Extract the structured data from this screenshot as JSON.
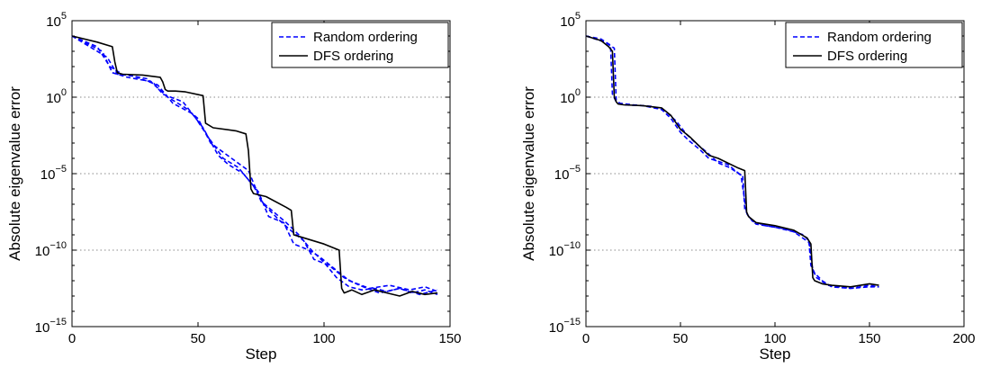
{
  "chart_data": [
    {
      "type": "line",
      "xlabel": "Step",
      "ylabel": "Absolute eigenvalue error",
      "xlim": [
        0,
        150
      ],
      "ylim_exponent": [
        -15,
        5
      ],
      "yscale": "log",
      "x_ticks": [
        0,
        50,
        100,
        150
      ],
      "y_ticks": [
        {
          "base": "10",
          "exp": "−15",
          "e": -15
        },
        {
          "base": "10",
          "exp": "−10",
          "e": -10
        },
        {
          "base": "10",
          "exp": "−5",
          "e": -5
        },
        {
          "base": "10",
          "exp": "0",
          "e": 0
        },
        {
          "base": "10",
          "exp": "5",
          "e": 5
        }
      ],
      "grid": "y-dotted",
      "legend_position": "top-right",
      "legend": [
        {
          "label": "Random ordering",
          "color": "#0000ff",
          "style": "dashed"
        },
        {
          "label": "DFS ordering",
          "color": "#000000",
          "style": "solid"
        }
      ],
      "series": [
        {
          "name": "DFS ordering",
          "color": "#000000",
          "style": "solid",
          "x": [
            0,
            10,
            16,
            17,
            18,
            20,
            28,
            35,
            36,
            37,
            38,
            41,
            45,
            52,
            53,
            56,
            65,
            69,
            70,
            71,
            72,
            77,
            85,
            87,
            88,
            90,
            100,
            103,
            106,
            107,
            108,
            111,
            115,
            120,
            125,
            130,
            135,
            140,
            145
          ],
          "y_exp": [
            4.0,
            3.6,
            3.3,
            2.3,
            1.6,
            1.5,
            1.45,
            1.3,
            1.0,
            0.5,
            0.4,
            0.4,
            0.35,
            0.1,
            -1.7,
            -2.0,
            -2.2,
            -2.4,
            -3.5,
            -6.0,
            -6.3,
            -6.5,
            -7.2,
            -7.4,
            -9.0,
            -9.1,
            -9.6,
            -9.8,
            -10.0,
            -12.5,
            -12.8,
            -12.6,
            -12.9,
            -12.6,
            -12.8,
            -13.0,
            -12.7,
            -12.9,
            -12.8
          ]
        },
        {
          "name": "Random ordering",
          "color": "#0000ff",
          "style": "dashed",
          "x": [
            0,
            10,
            15,
            20,
            30,
            38,
            45,
            50,
            55,
            60,
            65,
            70,
            75,
            80,
            85,
            90,
            95,
            100,
            105,
            110,
            115,
            120,
            125,
            130,
            135,
            140,
            145
          ],
          "y_exp": [
            4.0,
            3.3,
            2.0,
            1.5,
            1.2,
            0.0,
            -0.7,
            -1.4,
            -3.0,
            -3.6,
            -4.2,
            -4.8,
            -6.8,
            -7.5,
            -8.2,
            -9.0,
            -10.0,
            -10.8,
            -11.8,
            -12.4,
            -12.6,
            -12.5,
            -12.7,
            -12.5,
            -12.8,
            -12.6,
            -12.9
          ]
        },
        {
          "name": "Random ordering",
          "color": "#0000ff",
          "style": "dashed",
          "x": [
            0,
            12,
            16,
            22,
            32,
            36,
            44,
            52,
            58,
            62,
            68,
            74,
            78,
            84,
            88,
            94,
            98,
            104,
            110,
            118,
            126,
            134,
            140,
            145
          ],
          "y_exp": [
            4.0,
            3.0,
            1.6,
            1.3,
            1.0,
            0.2,
            -0.3,
            -2.0,
            -3.8,
            -4.4,
            -5.0,
            -6.2,
            -7.8,
            -8.2,
            -9.6,
            -10.0,
            -10.4,
            -11.2,
            -12.0,
            -12.5,
            -12.3,
            -12.6,
            -12.4,
            -12.7
          ]
        },
        {
          "name": "Random ordering",
          "color": "#0000ff",
          "style": "dashed",
          "x": [
            0,
            14,
            18,
            24,
            34,
            40,
            48,
            54,
            60,
            66,
            72,
            76,
            82,
            86,
            92,
            96,
            102,
            108,
            114,
            122,
            130,
            138,
            145
          ],
          "y_exp": [
            4.0,
            2.6,
            1.5,
            1.4,
            0.8,
            -0.4,
            -1.1,
            -2.6,
            -4.0,
            -4.6,
            -5.8,
            -7.0,
            -8.0,
            -8.6,
            -9.4,
            -10.6,
            -11.0,
            -11.8,
            -12.3,
            -12.8,
            -12.5,
            -12.9,
            -12.6
          ]
        }
      ]
    },
    {
      "type": "line",
      "xlabel": "Step",
      "ylabel": "Absolute eigenvalue error",
      "xlim": [
        0,
        200
      ],
      "ylim_exponent": [
        -15,
        5
      ],
      "yscale": "log",
      "x_ticks": [
        0,
        50,
        100,
        150,
        200
      ],
      "y_ticks": [
        {
          "base": "10",
          "exp": "−15",
          "e": -15
        },
        {
          "base": "10",
          "exp": "−10",
          "e": -10
        },
        {
          "base": "10",
          "exp": "−5",
          "e": -5
        },
        {
          "base": "10",
          "exp": "0",
          "e": 0
        },
        {
          "base": "10",
          "exp": "5",
          "e": 5
        }
      ],
      "grid": "y-dotted",
      "legend_position": "top-right",
      "legend": [
        {
          "label": "Random ordering",
          "color": "#0000ff",
          "style": "dashed"
        },
        {
          "label": "DFS ordering",
          "color": "#000000",
          "style": "solid"
        }
      ],
      "series": [
        {
          "name": "DFS ordering",
          "color": "#000000",
          "style": "solid",
          "x": [
            0,
            8,
            12,
            14,
            15,
            16,
            17,
            20,
            30,
            40,
            45,
            50,
            55,
            60,
            65,
            70,
            75,
            80,
            84,
            85,
            86,
            90,
            100,
            110,
            117,
            119,
            120,
            121,
            125,
            130,
            140,
            150,
            155
          ],
          "y_exp": [
            4.0,
            3.7,
            3.3,
            3.0,
            0.0,
            -0.3,
            -0.45,
            -0.5,
            -0.55,
            -0.7,
            -1.2,
            -2.1,
            -2.6,
            -3.2,
            -3.8,
            -4.0,
            -4.3,
            -4.6,
            -4.8,
            -7.5,
            -7.8,
            -8.2,
            -8.4,
            -8.7,
            -9.2,
            -9.6,
            -11.8,
            -12.0,
            -12.2,
            -12.3,
            -12.4,
            -12.2,
            -12.3
          ]
        },
        {
          "name": "Random ordering",
          "color": "#0000ff",
          "style": "dashed",
          "x": [
            0,
            8,
            13,
            14,
            16,
            18,
            20,
            30,
            40,
            45,
            50,
            55,
            60,
            65,
            70,
            75,
            80,
            83,
            84,
            86,
            90,
            100,
            110,
            118,
            119,
            121,
            125,
            130,
            140,
            150,
            155
          ],
          "y_exp": [
            4.0,
            3.8,
            3.4,
            0.2,
            -0.3,
            -0.45,
            -0.5,
            -0.55,
            -0.8,
            -1.4,
            -2.3,
            -2.9,
            -3.4,
            -4.0,
            -4.2,
            -4.4,
            -4.9,
            -5.2,
            -7.3,
            -7.8,
            -8.3,
            -8.5,
            -8.8,
            -9.5,
            -11.0,
            -11.5,
            -12.0,
            -12.4,
            -12.5,
            -12.4,
            -12.4
          ]
        },
        {
          "name": "Random ordering",
          "color": "#0000ff",
          "style": "dashed",
          "x": [
            0,
            10,
            15,
            16,
            18,
            25,
            35,
            42,
            48,
            53,
            58,
            64,
            70,
            76,
            82,
            85,
            88,
            95,
            105,
            115,
            118,
            120,
            122,
            128,
            140,
            150,
            155
          ],
          "y_exp": [
            4.0,
            3.6,
            3.2,
            -0.2,
            -0.4,
            -0.5,
            -0.6,
            -0.9,
            -1.6,
            -2.4,
            -3.0,
            -3.6,
            -4.3,
            -4.6,
            -5.1,
            -7.6,
            -8.1,
            -8.4,
            -8.6,
            -9.0,
            -9.4,
            -11.3,
            -11.8,
            -12.3,
            -12.5,
            -12.3,
            -12.4
          ]
        }
      ]
    }
  ]
}
